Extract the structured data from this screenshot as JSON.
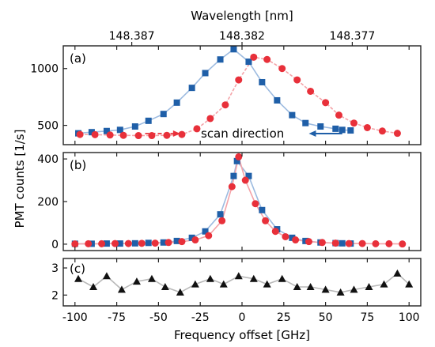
{
  "colors": {
    "blue": "#1f5fa8",
    "blue_light": "#9dbbe0",
    "red": "#e8303a",
    "red_light": "#f4a3a8",
    "black": "#111111",
    "gray_line": "#b8b8b8",
    "frame": "#222222"
  },
  "chart_data": {
    "type": "scatter",
    "x_label": "Frequency offset [GHz]",
    "y_label": "PMT counts [1/s]",
    "top_axis_label": "Wavelength [nm]",
    "x_range": [
      -107,
      107
    ],
    "x_ticks": [
      -100,
      -75,
      -50,
      -25,
      0,
      25,
      50,
      75,
      100
    ],
    "top_ticks": [
      {
        "label": "148.387",
        "x": -66
      },
      {
        "label": "148.382",
        "x": 0
      },
      {
        "label": "148.377",
        "x": 66
      }
    ],
    "panels": [
      {
        "label": "(a)",
        "y_range": [
          330,
          1200
        ],
        "y_ticks": [
          500,
          1000
        ],
        "annotation": "scan direction",
        "series": [
          {
            "marker": "square",
            "color": "blue",
            "x": [
              -98,
              -90,
              -81,
              -73,
              -64,
              -56,
              -47,
              -39,
              -30,
              -22,
              -13,
              -5,
              4,
              12,
              21,
              30,
              38,
              47,
              56,
              60,
              65
            ],
            "y": [
              430,
              440,
              450,
              460,
              490,
              540,
              600,
              700,
              830,
              960,
              1080,
              1170,
              1060,
              880,
              720,
              590,
              520,
              490,
              470,
              460,
              455
            ]
          },
          {
            "marker": "circle",
            "color": "red",
            "x": [
              -97,
              -88,
              -79,
              -71,
              -62,
              -54,
              -45,
              -36,
              -27,
              -19,
              -10,
              -2,
              7,
              15,
              24,
              33,
              41,
              50,
              58,
              67,
              75,
              84,
              93
            ],
            "y": [
              420,
              418,
              415,
              412,
              410,
              410,
              412,
              420,
              470,
              560,
              680,
              900,
              1100,
              1080,
              1000,
              900,
              800,
              700,
              590,
              520,
              480,
              450,
              430
            ]
          }
        ]
      },
      {
        "label": "(b)",
        "y_range": [
          -30,
          430
        ],
        "y_ticks": [
          0,
          200,
          400
        ],
        "series": [
          {
            "marker": "square",
            "color": "blue",
            "x": [
              -100,
              -90,
              -81,
              -73,
              -64,
              -56,
              -47,
              -39,
              -30,
              -22,
              -13,
              -5,
              -3,
              4,
              12,
              21,
              30,
              38,
              47,
              56,
              60,
              65
            ],
            "y": [
              2,
              2,
              3,
              3,
              4,
              6,
              8,
              15,
              30,
              60,
              140,
              320,
              390,
              320,
              160,
              70,
              30,
              15,
              8,
              5,
              4,
              3
            ]
          },
          {
            "marker": "circle",
            "color": "red",
            "x": [
              -100,
              -92,
              -84,
              -76,
              -68,
              -60,
              -52,
              -44,
              -36,
              -28,
              -20,
              -12,
              -6,
              -2,
              2,
              8,
              14,
              20,
              26,
              32,
              40,
              48,
              56,
              64,
              72,
              80,
              88,
              96
            ],
            "y": [
              1,
              2,
              2,
              3,
              3,
              4,
              5,
              8,
              12,
              20,
              40,
              110,
              270,
              410,
              300,
              190,
              110,
              60,
              35,
              20,
              12,
              8,
              5,
              3,
              3,
              2,
              2,
              1
            ]
          }
        ]
      },
      {
        "label": "(c)",
        "y_range": [
          1.6,
          3.35
        ],
        "y_ticks": [
          2,
          3
        ],
        "series": [
          {
            "marker": "triangle",
            "color": "black",
            "x": [
              -98,
              -89,
              -81,
              -72,
              -63,
              -54,
              -46,
              -37,
              -28,
              -19,
              -11,
              -2,
              7,
              15,
              24,
              33,
              41,
              50,
              59,
              67,
              76,
              85,
              93,
              100
            ],
            "y": [
              2.6,
              2.3,
              2.7,
              2.2,
              2.5,
              2.6,
              2.3,
              2.1,
              2.4,
              2.6,
              2.4,
              2.7,
              2.6,
              2.4,
              2.6,
              2.3,
              2.3,
              2.2,
              2.1,
              2.2,
              2.3,
              2.4,
              2.8,
              2.4
            ]
          }
        ]
      }
    ]
  }
}
